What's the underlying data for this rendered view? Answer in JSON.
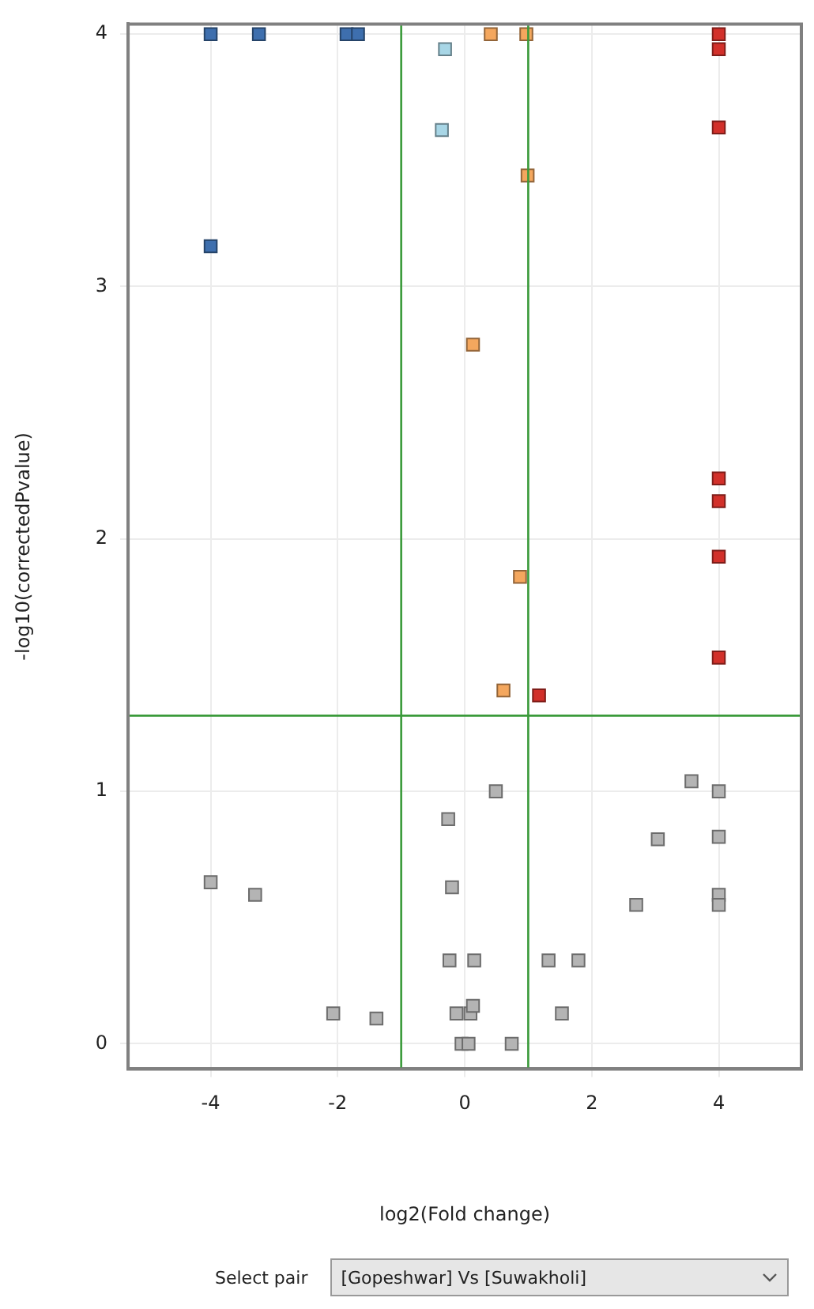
{
  "chart_data": {
    "type": "scatter",
    "xlabel": "log2(Fold change)",
    "ylabel": "-log10(correctedPvalue)",
    "xlim": [
      -5.3,
      5.3
    ],
    "ylim": [
      -0.1,
      4.04
    ],
    "xticks": [
      -4,
      -2,
      0,
      2,
      4
    ],
    "yticks": [
      0,
      1,
      2,
      3,
      4
    ],
    "grid": true,
    "legend": false,
    "marker": "square",
    "ref_lines": [
      {
        "axis": "x",
        "value": -1,
        "color": "#3a9a3a"
      },
      {
        "axis": "x",
        "value": 1,
        "color": "#3a9a3a"
      },
      {
        "axis": "y",
        "value": 1.3,
        "color": "#3a9a3a"
      }
    ],
    "annotations": [
      "Select pair",
      "[Gopeshwar] Vs [Suwakholi]"
    ],
    "series": [
      {
        "color": "#3e6fae",
        "x": [
          -4,
          -3.24,
          -1.86,
          -1.68,
          -4
        ],
        "values": [
          4,
          4,
          4,
          4,
          3.16
        ]
      },
      {
        "color": "#a8d6e6",
        "x": [
          -0.31,
          -0.36
        ],
        "values": [
          3.94,
          3.62
        ]
      },
      {
        "color": "#f4a75e",
        "x": [
          0.41,
          0.97,
          0.99,
          0.13,
          0.87,
          0.61
        ],
        "values": [
          4,
          4,
          3.44,
          2.77,
          1.85,
          1.4
        ]
      },
      {
        "color": "#d2302a",
        "x": [
          4,
          4,
          4,
          4,
          4,
          4,
          4,
          1.17
        ],
        "values": [
          4,
          3.94,
          3.63,
          2.24,
          2.15,
          1.93,
          1.53,
          1.38
        ]
      },
      {
        "color": "#b4b4b4",
        "x": [
          -4,
          -3.3,
          -2.07,
          -1.39,
          -0.26,
          0.49,
          -0.2,
          -0.24,
          0.15,
          -0.13,
          0.09,
          0.13,
          -0.05,
          0.06,
          0.74,
          1.32,
          1.79,
          1.53,
          2.7,
          3.04,
          3.57,
          4,
          4,
          4,
          4
        ],
        "values": [
          0.64,
          0.59,
          0.12,
          0.1,
          0.89,
          1,
          0.62,
          0.33,
          0.33,
          0.12,
          0.12,
          0.15,
          0,
          0,
          0,
          0.33,
          0.33,
          0.12,
          0.55,
          0.81,
          1.04,
          1,
          0.82,
          0.59,
          0.55
        ]
      }
    ]
  }
}
